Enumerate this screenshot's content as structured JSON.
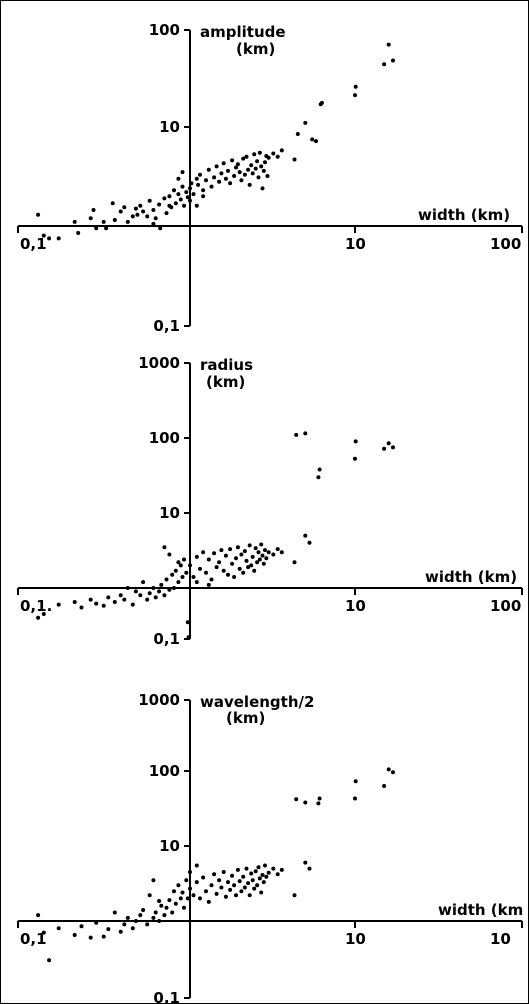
{
  "chart_data": [
    {
      "type": "scatter",
      "xscale": "log",
      "yscale": "log",
      "xlim": [
        0.1,
        100
      ],
      "ylim": [
        0.1,
        100
      ],
      "xlabel": "width (km)",
      "ylabel": [
        "amplitude",
        "(km)"
      ],
      "xticks": [
        "0,1",
        "10",
        "100"
      ],
      "yticks": [
        "100",
        "10",
        "0,1"
      ],
      "points": [
        [
          0.12,
          1.3
        ],
        [
          0.13,
          0.8
        ],
        [
          0.14,
          0.75
        ],
        [
          0.16,
          0.75
        ],
        [
          0.2,
          1.1
        ],
        [
          0.21,
          0.85
        ],
        [
          0.25,
          1.2
        ],
        [
          0.26,
          1.45
        ],
        [
          0.27,
          0.95
        ],
        [
          0.3,
          1.1
        ],
        [
          0.31,
          0.95
        ],
        [
          0.34,
          1.7
        ],
        [
          0.35,
          1.15
        ],
        [
          0.38,
          1.4
        ],
        [
          0.4,
          1.55
        ],
        [
          0.42,
          1.1
        ],
        [
          0.45,
          1.25
        ],
        [
          0.47,
          1.5
        ],
        [
          0.48,
          1.3
        ],
        [
          0.5,
          1.6
        ],
        [
          0.52,
          1.4
        ],
        [
          0.55,
          1.25
        ],
        [
          0.57,
          1.8
        ],
        [
          0.6,
          1.45
        ],
        [
          0.62,
          1.2
        ],
        [
          0.65,
          1.65
        ],
        [
          0.7,
          1.9
        ],
        [
          0.72,
          1.35
        ],
        [
          0.75,
          2.0
        ],
        [
          0.77,
          1.55
        ],
        [
          0.8,
          2.3
        ],
        [
          0.82,
          1.7
        ],
        [
          0.85,
          2.1
        ],
        [
          0.88,
          1.85
        ],
        [
          0.9,
          2.5
        ],
        [
          0.92,
          1.6
        ],
        [
          0.95,
          2.2
        ],
        [
          0.97,
          1.95
        ],
        [
          0.6,
          1.05
        ],
        [
          0.66,
          0.95
        ],
        [
          0.75,
          1.6
        ],
        [
          0.85,
          3.0
        ],
        [
          0.9,
          3.5
        ],
        [
          1.0,
          2.4
        ],
        [
          1.02,
          2.7
        ],
        [
          1.05,
          2.1
        ],
        [
          1.1,
          3.0
        ],
        [
          1.12,
          2.6
        ],
        [
          1.15,
          3.3
        ],
        [
          1.2,
          2.3
        ],
        [
          1.25,
          2.9
        ],
        [
          1.3,
          3.7
        ],
        [
          1.35,
          2.5
        ],
        [
          1.4,
          3.1
        ],
        [
          1.45,
          4.0
        ],
        [
          1.5,
          2.8
        ],
        [
          1.55,
          3.4
        ],
        [
          1.6,
          4.3
        ],
        [
          1.65,
          3.0
        ],
        [
          1.7,
          3.6
        ],
        [
          1.75,
          2.7
        ],
        [
          1.8,
          4.6
        ],
        [
          1.85,
          3.2
        ],
        [
          1.9,
          3.9
        ],
        [
          1.95,
          4.2
        ],
        [
          2.0,
          3.5
        ],
        [
          2.05,
          2.9
        ],
        [
          2.1,
          4.8
        ],
        [
          2.15,
          3.3
        ],
        [
          2.2,
          5.0
        ],
        [
          2.25,
          3.7
        ],
        [
          2.3,
          2.6
        ],
        [
          2.35,
          4.1
        ],
        [
          2.4,
          3.4
        ],
        [
          2.45,
          5.3
        ],
        [
          2.5,
          3.8
        ],
        [
          2.55,
          4.5
        ],
        [
          2.6,
          3.1
        ],
        [
          2.65,
          5.5
        ],
        [
          2.7,
          4.0
        ],
        [
          2.75,
          2.4
        ],
        [
          2.8,
          3.6
        ],
        [
          2.85,
          4.4
        ],
        [
          2.9,
          5.1
        ],
        [
          2.95,
          3.2
        ],
        [
          3.0,
          4.9
        ],
        [
          3.2,
          5.4
        ],
        [
          3.4,
          5.0
        ],
        [
          3.6,
          5.8
        ],
        [
          1.0,
          1.8
        ],
        [
          1.1,
          1.6
        ],
        [
          1.2,
          2.0
        ],
        [
          4.3,
          4.7
        ],
        [
          4.5,
          8.5
        ],
        [
          5.0,
          11
        ],
        [
          5.5,
          7.5
        ],
        [
          5.8,
          7.2
        ],
        [
          6.2,
          17
        ],
        [
          6.3,
          17.5
        ],
        [
          10,
          21
        ],
        [
          10.1,
          25.5
        ],
        [
          15,
          43
        ],
        [
          16,
          68
        ],
        [
          17,
          47
        ]
      ]
    },
    {
      "type": "scatter",
      "xscale": "log",
      "yscale": "log",
      "xlim": [
        0.1,
        100
      ],
      "ylim": [
        0.1,
        1000
      ],
      "xlabel": "width (km)",
      "ylabel": [
        "radius",
        "(km)"
      ],
      "xticks": [
        "0,1.",
        "10",
        "100"
      ],
      "yticks": [
        "1000",
        "100",
        "10",
        "0,1"
      ],
      "points": [
        [
          0.12,
          0.4
        ],
        [
          0.13,
          0.45
        ],
        [
          0.16,
          0.6
        ],
        [
          0.2,
          0.65
        ],
        [
          0.22,
          0.55
        ],
        [
          0.25,
          0.7
        ],
        [
          0.27,
          0.62
        ],
        [
          0.3,
          0.58
        ],
        [
          0.32,
          0.75
        ],
        [
          0.35,
          0.65
        ],
        [
          0.38,
          0.8
        ],
        [
          0.4,
          0.7
        ],
        [
          0.42,
          1.0
        ],
        [
          0.45,
          0.6
        ],
        [
          0.47,
          0.9
        ],
        [
          0.5,
          0.8
        ],
        [
          0.52,
          1.2
        ],
        [
          0.55,
          0.7
        ],
        [
          0.57,
          0.85
        ],
        [
          0.6,
          1.0
        ],
        [
          0.62,
          0.75
        ],
        [
          0.65,
          0.9
        ],
        [
          0.67,
          1.1
        ],
        [
          0.7,
          0.8
        ],
        [
          0.72,
          1.3
        ],
        [
          0.75,
          0.95
        ],
        [
          0.78,
          1.5
        ],
        [
          0.8,
          1.0
        ],
        [
          0.82,
          1.7
        ],
        [
          0.85,
          1.2
        ],
        [
          0.88,
          2.0
        ],
        [
          0.9,
          1.4
        ],
        [
          0.92,
          2.4
        ],
        [
          0.95,
          1.6
        ],
        [
          0.97,
          0.35
        ],
        [
          0.98,
          0.22
        ],
        [
          0.7,
          3.5
        ],
        [
          0.75,
          2.8
        ],
        [
          0.85,
          2.2
        ],
        [
          1.0,
          2.0
        ],
        [
          1.05,
          1.4
        ],
        [
          1.1,
          2.6
        ],
        [
          1.15,
          1.8
        ],
        [
          1.2,
          3.0
        ],
        [
          1.25,
          1.6
        ],
        [
          1.3,
          2.4
        ],
        [
          1.35,
          1.3
        ],
        [
          1.4,
          2.9
        ],
        [
          1.45,
          1.9
        ],
        [
          1.5,
          2.2
        ],
        [
          1.55,
          3.2
        ],
        [
          1.6,
          1.7
        ],
        [
          1.65,
          2.7
        ],
        [
          1.7,
          1.5
        ],
        [
          1.75,
          3.3
        ],
        [
          1.8,
          2.1
        ],
        [
          1.85,
          1.4
        ],
        [
          1.9,
          2.5
        ],
        [
          1.95,
          3.5
        ],
        [
          2.0,
          1.8
        ],
        [
          2.05,
          2.8
        ],
        [
          2.1,
          1.6
        ],
        [
          2.15,
          3.1
        ],
        [
          2.2,
          2.3
        ],
        [
          2.25,
          1.9
        ],
        [
          2.3,
          3.7
        ],
        [
          2.35,
          2.0
        ],
        [
          2.4,
          2.6
        ],
        [
          2.45,
          1.7
        ],
        [
          2.5,
          3.4
        ],
        [
          2.55,
          2.2
        ],
        [
          2.6,
          3.0
        ],
        [
          2.65,
          2.4
        ],
        [
          2.7,
          3.8
        ],
        [
          2.75,
          2.7
        ],
        [
          2.8,
          2.1
        ],
        [
          2.85,
          3.2
        ],
        [
          2.9,
          2.5
        ],
        [
          3.0,
          3.0
        ],
        [
          3.2,
          2.8
        ],
        [
          3.4,
          3.3
        ],
        [
          3.6,
          3.0
        ],
        [
          1.1,
          1.2
        ],
        [
          1.3,
          1.1
        ],
        [
          4.3,
          2.2
        ],
        [
          5.0,
          5.0
        ],
        [
          5.3,
          4.0
        ],
        [
          4.4,
          110
        ],
        [
          5.0,
          115
        ],
        [
          6.0,
          30
        ],
        [
          6.1,
          38
        ],
        [
          10,
          53
        ],
        [
          10.1,
          90
        ],
        [
          15,
          72
        ],
        [
          16,
          85
        ],
        [
          17,
          75
        ]
      ]
    },
    {
      "type": "scatter",
      "xscale": "log",
      "yscale": "log",
      "xlim": [
        0.1,
        100
      ],
      "ylim": [
        0.1,
        1000
      ],
      "xlabel": "width (km",
      "ylabel": [
        "wavelength/2",
        "(km)"
      ],
      "xticks": [
        "0,1",
        "10",
        "10"
      ],
      "yticks": [
        "1000",
        "100",
        "10",
        "0,1"
      ],
      "points": [
        [
          0.12,
          1.2
        ],
        [
          0.13,
          0.7
        ],
        [
          0.14,
          0.3
        ],
        [
          0.16,
          0.8
        ],
        [
          0.2,
          0.65
        ],
        [
          0.22,
          0.85
        ],
        [
          0.25,
          0.6
        ],
        [
          0.27,
          0.95
        ],
        [
          0.3,
          0.62
        ],
        [
          0.32,
          0.78
        ],
        [
          0.35,
          1.3
        ],
        [
          0.38,
          0.72
        ],
        [
          0.4,
          0.9
        ],
        [
          0.42,
          1.1
        ],
        [
          0.45,
          0.8
        ],
        [
          0.47,
          1.0
        ],
        [
          0.5,
          1.2
        ],
        [
          0.52,
          1.4
        ],
        [
          0.55,
          0.9
        ],
        [
          0.57,
          2.2
        ],
        [
          0.6,
          1.1
        ],
        [
          0.62,
          1.3
        ],
        [
          0.65,
          1.0
        ],
        [
          0.67,
          1.6
        ],
        [
          0.7,
          1.2
        ],
        [
          0.72,
          1.5
        ],
        [
          0.75,
          1.9
        ],
        [
          0.78,
          1.3
        ],
        [
          0.8,
          2.5
        ],
        [
          0.82,
          1.7
        ],
        [
          0.85,
          3.0
        ],
        [
          0.88,
          2.0
        ],
        [
          0.9,
          2.4
        ],
        [
          0.92,
          1.5
        ],
        [
          0.95,
          3.5
        ],
        [
          0.97,
          2.0
        ],
        [
          0.6,
          3.5
        ],
        [
          0.65,
          1.85
        ],
        [
          1.0,
          2.7
        ],
        [
          1.05,
          2.2
        ],
        [
          1.1,
          3.3
        ],
        [
          1.15,
          2.0
        ],
        [
          1.2,
          3.8
        ],
        [
          1.25,
          2.5
        ],
        [
          1.3,
          1.8
        ],
        [
          1.35,
          3.0
        ],
        [
          1.4,
          4.2
        ],
        [
          1.45,
          2.3
        ],
        [
          1.5,
          3.5
        ],
        [
          1.55,
          2.8
        ],
        [
          1.6,
          4.5
        ],
        [
          1.65,
          2.1
        ],
        [
          1.7,
          3.3
        ],
        [
          1.75,
          2.6
        ],
        [
          1.8,
          4.0
        ],
        [
          1.85,
          3.0
        ],
        [
          1.9,
          2.2
        ],
        [
          1.95,
          4.8
        ],
        [
          2.0,
          3.4
        ],
        [
          2.05,
          2.5
        ],
        [
          2.1,
          3.9
        ],
        [
          2.15,
          2.8
        ],
        [
          2.2,
          5.0
        ],
        [
          2.25,
          3.2
        ],
        [
          2.3,
          2.2
        ],
        [
          2.35,
          4.3
        ],
        [
          2.4,
          3.5
        ],
        [
          2.45,
          2.7
        ],
        [
          2.5,
          4.6
        ],
        [
          2.55,
          3.0
        ],
        [
          2.6,
          5.2
        ],
        [
          2.65,
          3.7
        ],
        [
          2.7,
          2.4
        ],
        [
          2.75,
          4.1
        ],
        [
          2.8,
          3.3
        ],
        [
          2.85,
          5.5
        ],
        [
          2.9,
          3.9
        ],
        [
          3.0,
          4.4
        ],
        [
          3.2,
          5.0
        ],
        [
          3.4,
          4.2
        ],
        [
          3.6,
          4.8
        ],
        [
          1.0,
          4.5
        ],
        [
          1.1,
          5.5
        ],
        [
          4.3,
          2.2
        ],
        [
          5.0,
          6.0
        ],
        [
          5.3,
          5.0
        ],
        [
          4.4,
          42
        ],
        [
          5.0,
          38
        ],
        [
          6.0,
          37
        ],
        [
          6.1,
          43
        ],
        [
          10,
          43
        ],
        [
          10.1,
          73
        ],
        [
          15,
          63
        ],
        [
          16,
          105
        ],
        [
          17,
          96
        ]
      ]
    }
  ]
}
